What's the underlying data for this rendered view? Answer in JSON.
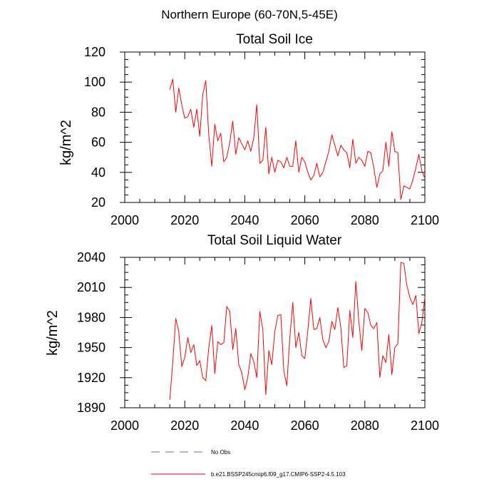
{
  "figure_title": "Northern Europe (60-70N,5-45E)",
  "chart_data": [
    {
      "type": "line",
      "title": "Total Soil Ice",
      "xlabel": "",
      "ylabel": "kg/m^2",
      "xlim": [
        2000,
        2100
      ],
      "ylim": [
        20,
        120
      ],
      "xticks": [
        2000,
        2020,
        2040,
        2060,
        2080,
        2100
      ],
      "yticks": [
        20,
        40,
        60,
        80,
        100,
        120
      ],
      "grid": false,
      "series": [
        {
          "name": "b.e21.BSSP245cmip6.f09_g17.CMIP6-SSP2-4.5.103",
          "color": "#ff0000",
          "x": [
            2015,
            2016,
            2017,
            2018,
            2019,
            2020,
            2021,
            2022,
            2023,
            2024,
            2025,
            2026,
            2027,
            2028,
            2029,
            2030,
            2031,
            2032,
            2033,
            2034,
            2035,
            2036,
            2037,
            2038,
            2039,
            2040,
            2041,
            2042,
            2043,
            2044,
            2045,
            2046,
            2047,
            2048,
            2049,
            2050,
            2051,
            2052,
            2053,
            2054,
            2055,
            2056,
            2057,
            2058,
            2059,
            2060,
            2061,
            2062,
            2063,
            2064,
            2065,
            2066,
            2067,
            2068,
            2069,
            2070,
            2071,
            2072,
            2073,
            2074,
            2075,
            2076,
            2077,
            2078,
            2079,
            2080,
            2081,
            2082,
            2083,
            2084,
            2085,
            2086,
            2087,
            2088,
            2089,
            2090,
            2091,
            2092,
            2093,
            2094,
            2095,
            2096,
            2097,
            2098,
            2099,
            2100
          ],
          "y": [
            95,
            102,
            80,
            96,
            85,
            76,
            77,
            82,
            70,
            82,
            64,
            92,
            101,
            65,
            44,
            72,
            61,
            66,
            47,
            50,
            60,
            74,
            52,
            63,
            59,
            55,
            61,
            54,
            63,
            85,
            46,
            48,
            70,
            39,
            50,
            40,
            48,
            47,
            43,
            50,
            44,
            44,
            61,
            40,
            50,
            47,
            40,
            35,
            38,
            46,
            37,
            40,
            47,
            54,
            65,
            58,
            51,
            58,
            55,
            53,
            43,
            62,
            46,
            50,
            48,
            44,
            54,
            53,
            43,
            30,
            39,
            41,
            60,
            44,
            67,
            54,
            53,
            22,
            31,
            30,
            29,
            35,
            43,
            52,
            41,
            36
          ]
        }
      ]
    },
    {
      "type": "line",
      "title": "Total Soil Liquid Water",
      "xlabel": "",
      "ylabel": "kg/m^2",
      "xlim": [
        2000,
        2100
      ],
      "ylim": [
        1890,
        2040
      ],
      "xticks": [
        2000,
        2020,
        2040,
        2060,
        2080,
        2100
      ],
      "yticks": [
        1890,
        1920,
        1950,
        1980,
        2010,
        2040
      ],
      "grid": false,
      "series": [
        {
          "name": "b.e21.BSSP245cmip6.f09_g17.CMIP6-SSP2-4.5.103",
          "color": "#ff0000",
          "x": [
            2015,
            2016,
            2017,
            2018,
            2019,
            2020,
            2021,
            2022,
            2023,
            2024,
            2025,
            2026,
            2027,
            2028,
            2029,
            2030,
            2031,
            2032,
            2033,
            2034,
            2035,
            2036,
            2037,
            2038,
            2039,
            2040,
            2041,
            2042,
            2043,
            2044,
            2045,
            2046,
            2047,
            2048,
            2049,
            2050,
            2051,
            2052,
            2053,
            2054,
            2055,
            2056,
            2057,
            2058,
            2059,
            2060,
            2061,
            2062,
            2063,
            2064,
            2065,
            2066,
            2067,
            2068,
            2069,
            2070,
            2071,
            2072,
            2073,
            2074,
            2075,
            2076,
            2077,
            2078,
            2079,
            2080,
            2081,
            2082,
            2083,
            2084,
            2085,
            2086,
            2087,
            2088,
            2089,
            2090,
            2091,
            2092,
            2093,
            2094,
            2095,
            2096,
            2097,
            2098,
            2099,
            2100
          ],
          "y": [
            1898,
            1935,
            1979,
            1966,
            1931,
            1940,
            1960,
            1945,
            1953,
            1932,
            1937,
            1920,
            1917,
            1950,
            1972,
            1924,
            1956,
            1953,
            1955,
            1991,
            1986,
            1948,
            1969,
            1933,
            1925,
            1908,
            1920,
            1944,
            1936,
            1920,
            1986,
            1968,
            1903,
            1947,
            1933,
            1966,
            1982,
            1983,
            1927,
            1912,
            1960,
            1995,
            1950,
            1965,
            1942,
            1939,
            1967,
            1999,
            1968,
            1969,
            1980,
            1958,
            1950,
            1956,
            1976,
            1968,
            1990,
            1970,
            1930,
            1932,
            1987,
            1960,
            2016,
            1976,
            1947,
            1989,
            1985,
            1972,
            1969,
            1975,
            1920,
            1942,
            1935,
            1963,
            1923,
            1950,
            1954,
            2035,
            2034,
            2012,
            2000,
            1993,
            2002,
            1964,
            1975,
            2000
          ]
        }
      ]
    }
  ],
  "legend": [
    {
      "label": "No Obs",
      "style": "dashed",
      "color": "#6666cc"
    },
    {
      "label": "b.e21.BSSP245cmip6.f09_g17.CMIP6-SSP2-4.5.103",
      "style": "solid",
      "color": "#ff0000"
    }
  ]
}
